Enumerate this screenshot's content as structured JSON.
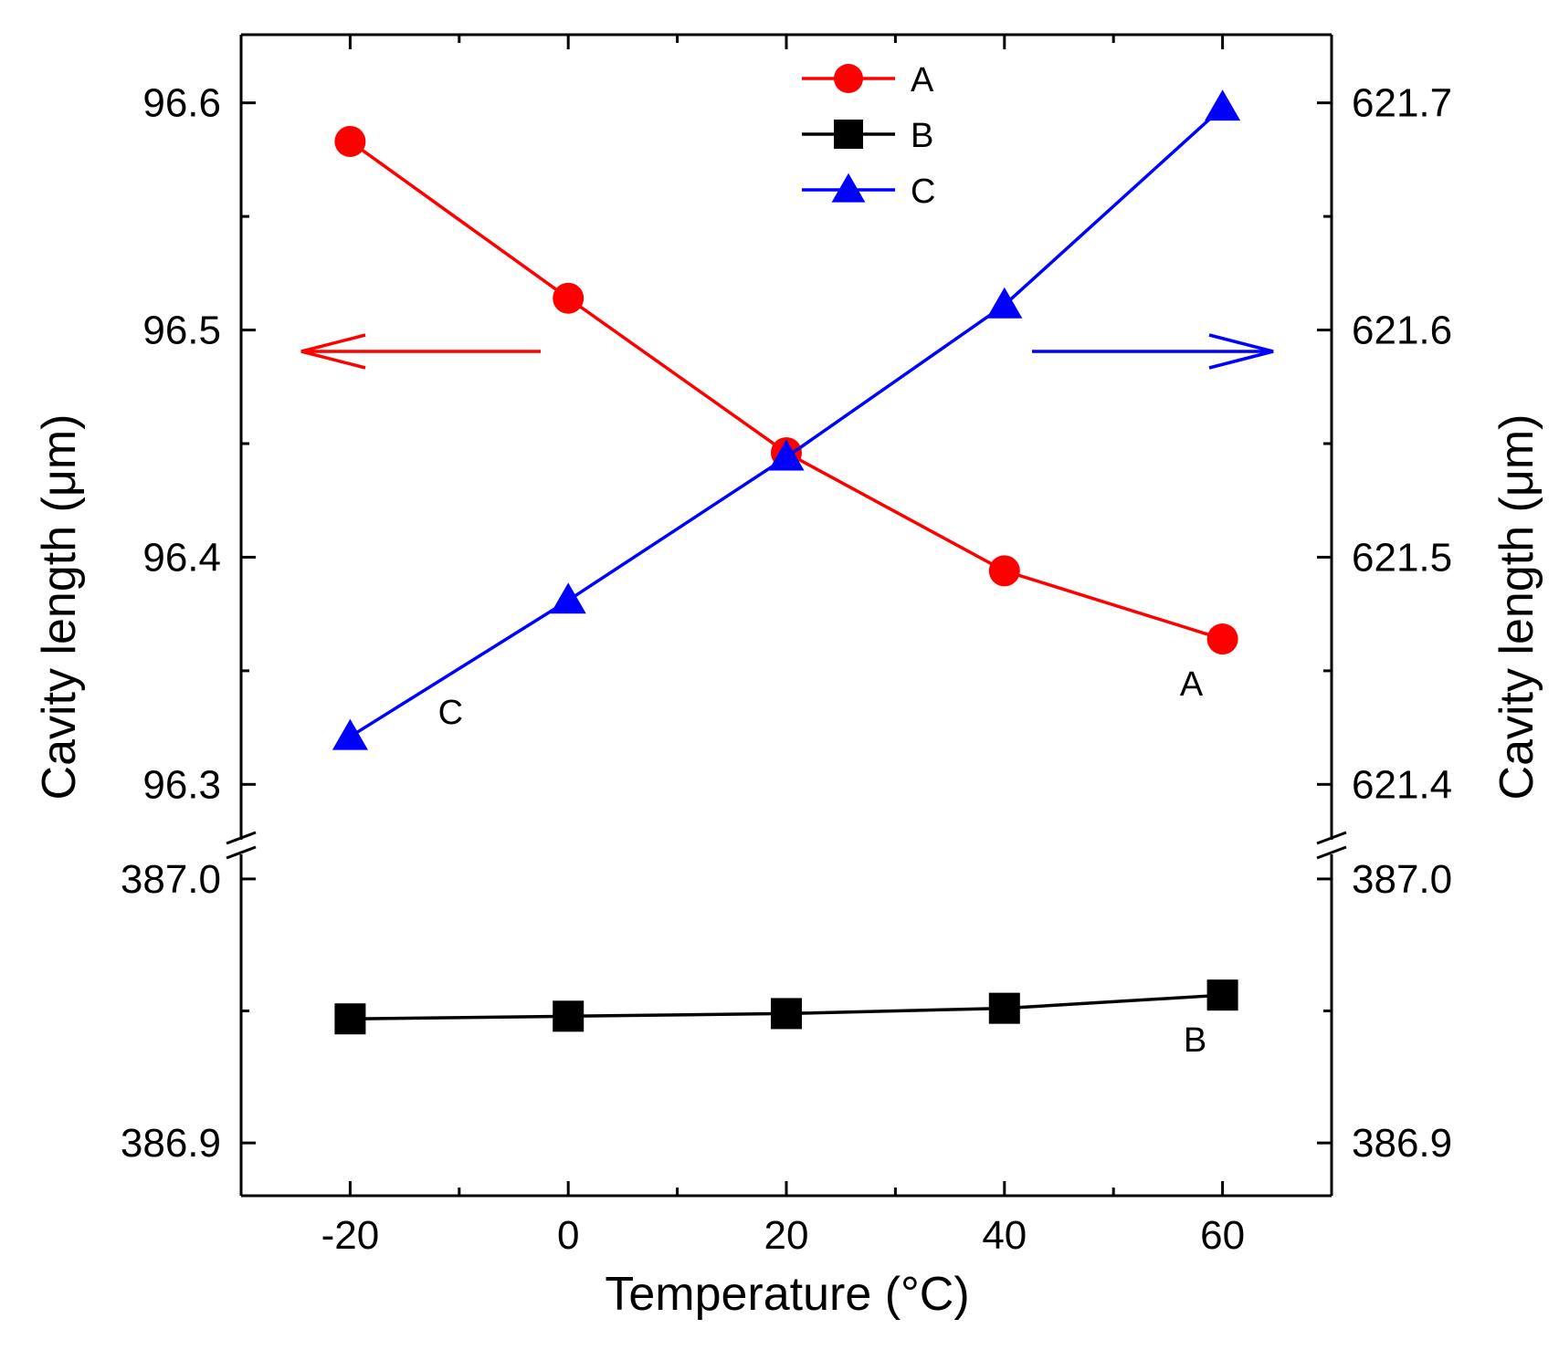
{
  "chart_data": {
    "type": "line",
    "title": "",
    "xlabel": "Temperature (°C)",
    "ylabel_left": "Cavity length (μm)",
    "ylabel_right": "Cavity length (μm)",
    "x": [
      -20,
      0,
      20,
      40,
      60
    ],
    "xlim": [
      -30,
      70
    ],
    "x_ticks": [
      "-20",
      "0",
      "20",
      "40",
      "60"
    ],
    "upper_left_axis": {
      "ylim": [
        96.27,
        96.63
      ],
      "ticks": [
        "96.3",
        "96.4",
        "96.5",
        "96.6"
      ]
    },
    "upper_right_axis": {
      "ylim": [
        621.37,
        621.73
      ],
      "ticks": [
        "621.4",
        "621.5",
        "621.6",
        "621.7"
      ]
    },
    "lower_left_axis": {
      "ylim": [
        386.88,
        387.01
      ],
      "ticks": [
        "386.9",
        "387.0"
      ]
    },
    "lower_right_axis": {
      "ylim": [
        386.88,
        387.01
      ],
      "ticks": [
        "386.9",
        "387.0"
      ]
    },
    "series": [
      {
        "name": "A",
        "color": "#ff0000",
        "marker": "circle",
        "axis": "upper_left",
        "values": [
          96.583,
          96.514,
          96.446,
          96.394,
          96.364
        ]
      },
      {
        "name": "B",
        "color": "#000000",
        "marker": "square",
        "axis": "lower_left",
        "values": [
          386.947,
          386.948,
          386.949,
          386.951,
          386.956
        ]
      },
      {
        "name": "C",
        "color": "#0000ff",
        "marker": "triangle",
        "axis": "upper_right",
        "values": [
          621.421,
          621.481,
          621.544,
          621.611,
          621.698
        ]
      }
    ],
    "legend": {
      "position": "top-center",
      "entries": [
        "A",
        "B",
        "C"
      ]
    },
    "annotations": [
      {
        "text": "C",
        "series": "C"
      },
      {
        "text": "A",
        "series": "A"
      },
      {
        "text": "B",
        "series": "B"
      }
    ],
    "arrows": [
      {
        "direction": "left",
        "color": "#ff0000",
        "meaning": "A uses left axis"
      },
      {
        "direction": "right",
        "color": "#0000ff",
        "meaning": "C uses right axis"
      }
    ]
  }
}
